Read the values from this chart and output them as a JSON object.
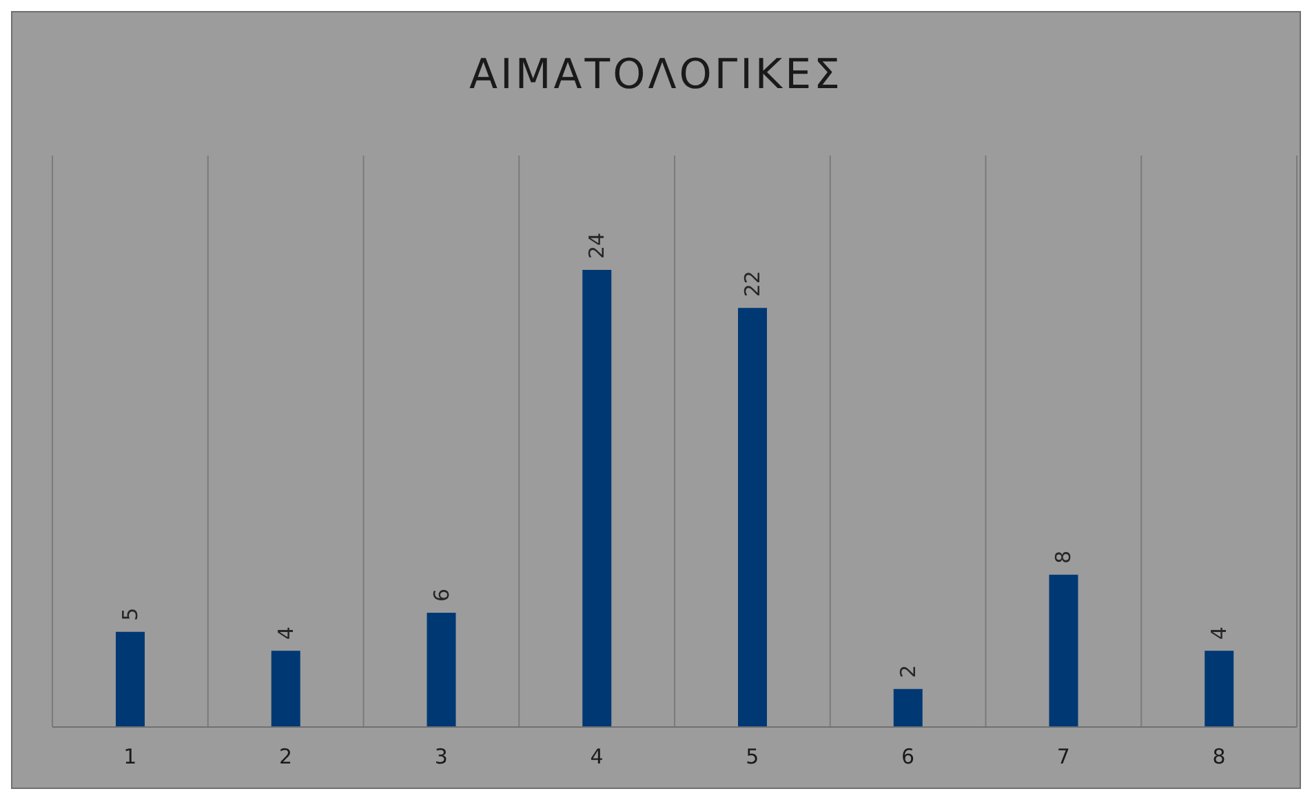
{
  "chart_data": {
    "type": "bar",
    "title": "ΑΙΜΑΤΟΛΟΓΙΚΕΣ",
    "categories": [
      "1",
      "2",
      "3",
      "4",
      "5",
      "6",
      "7",
      "8"
    ],
    "values": [
      5,
      4,
      6,
      24,
      22,
      2,
      8,
      4
    ],
    "color": "#003874",
    "data_labels": true,
    "grid": "x"
  }
}
